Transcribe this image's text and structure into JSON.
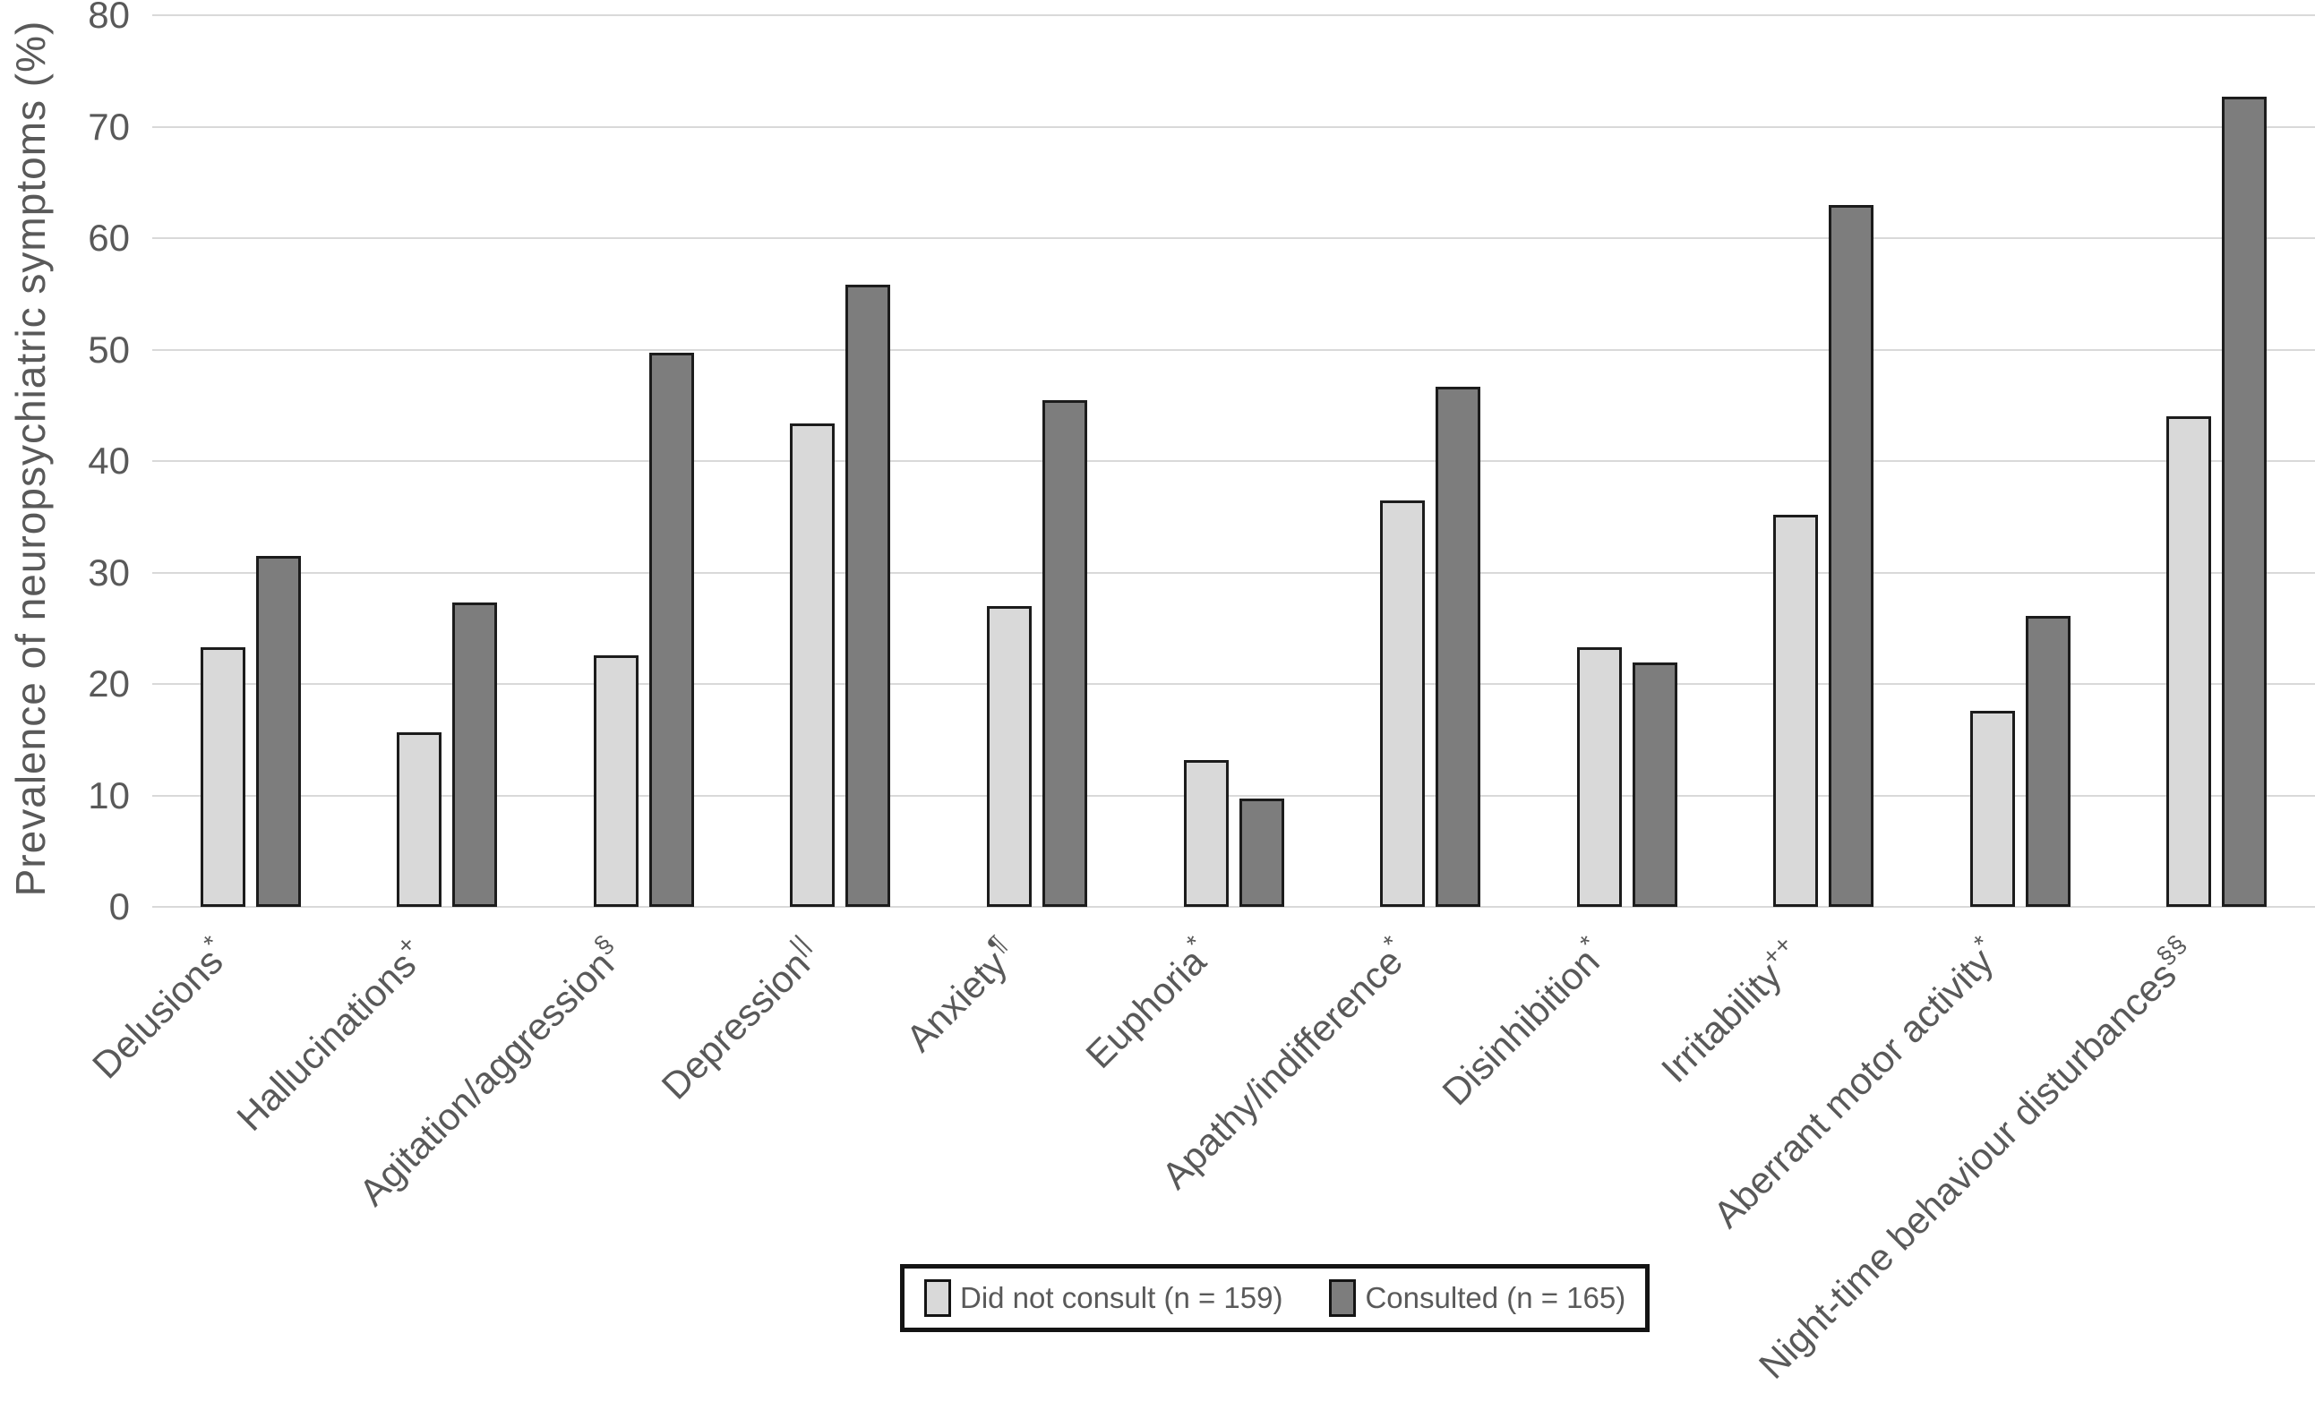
{
  "figure": {
    "background": "#ffffff"
  },
  "styles": {
    "grid_color": "#d9d9d9",
    "axis_text_color": "#595959",
    "bar_border_color": "#1c1c1c",
    "legend_border_color": "#141414"
  },
  "chart_data": {
    "type": "bar",
    "title": "",
    "xlabel": "",
    "ylabel": "Prevalence of neuropsychiatric symptoms (%)",
    "ylim": [
      0,
      80
    ],
    "yticks": [
      0,
      10,
      20,
      30,
      40,
      50,
      60,
      70,
      80
    ],
    "grid": true,
    "legend_position": "bottom-center",
    "categories": [
      {
        "label": "Delusions",
        "sup": "*"
      },
      {
        "label": "Hallucinations",
        "sup": "+"
      },
      {
        "label": "Agitation/aggression",
        "sup": "§"
      },
      {
        "label": "Depression",
        "sup": "||"
      },
      {
        "label": "Anxiety",
        "sup": "¶"
      },
      {
        "label": "Euphoria",
        "sup": "*"
      },
      {
        "label": "Apathy/indifference",
        "sup": "*"
      },
      {
        "label": "Disinhibition",
        "sup": "*"
      },
      {
        "label": "Irritability",
        "sup": "++"
      },
      {
        "label": "Aberrant motor activity",
        "sup": "*"
      },
      {
        "label": "Night-time behaviour disturbances",
        "sup": "§§"
      }
    ],
    "series": [
      {
        "name": "Did not consult (n = 159)",
        "color": "#d9d9d9",
        "values": [
          23.3,
          15.7,
          22.6,
          43.4,
          27.0,
          13.2,
          36.5,
          23.3,
          35.2,
          17.6,
          44.0
        ]
      },
      {
        "name": "Consulted (n = 165)",
        "color": "#7d7d7d",
        "values": [
          31.5,
          27.3,
          49.7,
          55.8,
          45.5,
          9.7,
          46.7,
          21.9,
          63.0,
          26.1,
          72.7
        ]
      }
    ]
  }
}
